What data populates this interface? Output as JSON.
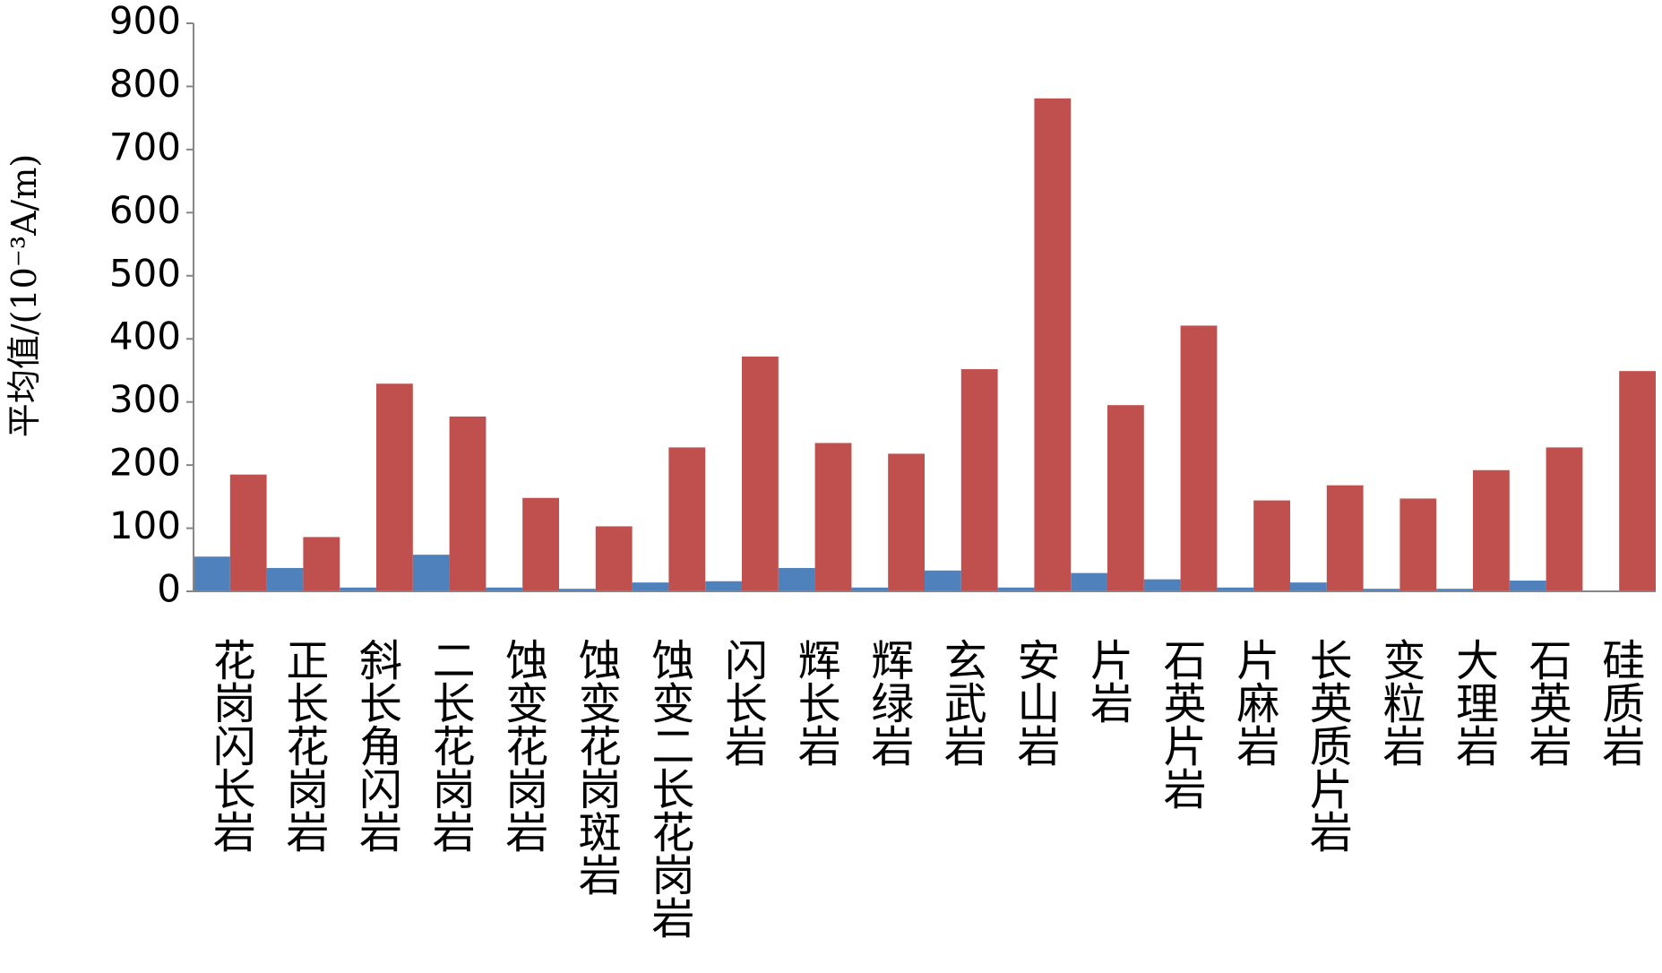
{
  "chart_data": {
    "type": "bar",
    "y_label": "平均值/(10⁻³A/m)",
    "categories": [
      "花岗闪长岩",
      "正长花岗岩",
      "斜长角闪岩",
      "二长花岗岩",
      "蚀变花岗岩",
      "蚀变花岗斑岩",
      "蚀变二长花岗岩",
      "闪长岩",
      "辉长岩",
      "辉绿岩",
      "玄武岩",
      "安山岩",
      "片岩",
      "石英片岩",
      "片麻岩",
      "长英质片岩",
      "变粒岩",
      "大理岩",
      "石英岩",
      "硅质岩"
    ],
    "series": [
      {
        "color": "#4f81bd",
        "values": [
          55,
          37,
          6,
          58,
          6,
          4,
          14,
          16,
          37,
          6,
          33,
          6,
          29,
          19,
          6,
          14,
          4,
          4,
          17,
          0
        ]
      },
      {
        "color": "#c0504d",
        "values": [
          185,
          86,
          329,
          277,
          148,
          103,
          228,
          372,
          235,
          218,
          352,
          781,
          295,
          421,
          144,
          168,
          147,
          192,
          228,
          349
        ]
      }
    ],
    "ylim": [
      0,
      900
    ],
    "yticks": [
      0,
      100,
      200,
      300,
      400,
      500,
      600,
      700,
      800,
      900
    ]
  }
}
